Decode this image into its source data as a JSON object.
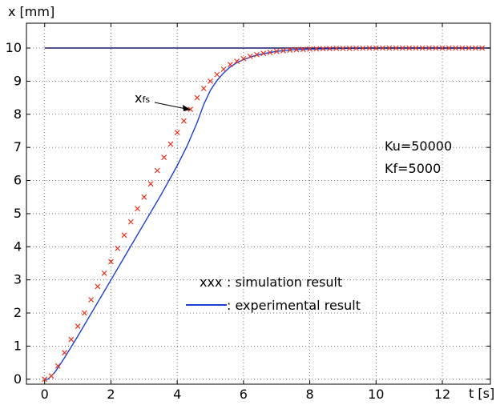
{
  "chart_data": {
    "type": "line",
    "xlabel": "t [s]",
    "ylabel": "x [mm]",
    "xlim": [
      -0.55,
      13.45
    ],
    "ylim": [
      -0.15,
      10.75
    ],
    "xticks": [
      0,
      2,
      4,
      6,
      8,
      10,
      12
    ],
    "yticks": [
      0,
      1,
      2,
      3,
      4,
      5,
      6,
      7,
      8,
      9,
      10
    ],
    "grid": true,
    "series": [
      {
        "name": ": simulation result",
        "marker": "x",
        "color": "#e8321e",
        "x": [
          0,
          0.2,
          0.4,
          0.6,
          0.8,
          1.0,
          1.2,
          1.4,
          1.6,
          1.8,
          2.0,
          2.2,
          2.4,
          2.6,
          2.8,
          3.0,
          3.2,
          3.4,
          3.6,
          3.8,
          4.0,
          4.2,
          4.4,
          4.6,
          4.8,
          5.0,
          5.2,
          5.4,
          5.6,
          5.8,
          6.0,
          6.2,
          6.4,
          6.6,
          6.8,
          7.0,
          7.2,
          7.4,
          7.6,
          7.8,
          8.0,
          8.2,
          8.4,
          8.6,
          8.8,
          9.0,
          9.2,
          9.4,
          9.6,
          9.8,
          10.0,
          10.2,
          10.4,
          10.6,
          10.8,
          11.0,
          11.2,
          11.4,
          11.6,
          11.8,
          12.0,
          12.2,
          12.4,
          12.6,
          12.8,
          13.0,
          13.2
        ],
        "y": [
          0.0,
          0.1,
          0.4,
          0.8,
          1.2,
          1.6,
          2.0,
          2.4,
          2.8,
          3.2,
          3.55,
          3.95,
          4.35,
          4.75,
          5.15,
          5.5,
          5.9,
          6.3,
          6.7,
          7.1,
          7.45,
          7.8,
          8.15,
          8.5,
          8.78,
          9.0,
          9.2,
          9.36,
          9.5,
          9.6,
          9.68,
          9.75,
          9.8,
          9.84,
          9.87,
          9.9,
          9.92,
          9.94,
          9.95,
          9.96,
          9.97,
          9.975,
          9.98,
          9.985,
          9.99,
          9.99,
          9.99,
          9.995,
          9.995,
          10.0,
          10.0,
          10.0,
          10.0,
          10.0,
          10.0,
          10.0,
          10.0,
          10.0,
          10.0,
          10.0,
          10.0,
          10.0,
          10.0,
          10.0,
          10.0,
          10.0,
          10.0
        ]
      },
      {
        "name": ": experimental result",
        "marker": "line",
        "color": "#1a3fd0",
        "x": [
          0,
          0.1,
          0.3,
          0.6,
          1.0,
          1.5,
          2.0,
          2.5,
          3.0,
          3.5,
          4.0,
          4.3,
          4.6,
          4.8,
          5.0,
          5.2,
          5.4,
          5.6,
          5.8,
          6.0,
          6.3,
          6.6,
          7.0,
          7.5,
          8.0,
          8.5,
          9.0,
          10.0,
          11.0,
          12.0,
          13.2
        ],
        "y": [
          0.0,
          0.0,
          0.2,
          0.65,
          1.3,
          2.15,
          3.0,
          3.85,
          4.7,
          5.55,
          6.45,
          7.05,
          7.75,
          8.3,
          8.72,
          9.02,
          9.25,
          9.43,
          9.56,
          9.65,
          9.76,
          9.83,
          9.9,
          9.95,
          9.97,
          9.98,
          9.99,
          10.0,
          10.0,
          10.0,
          10.0
        ]
      },
      {
        "name": "",
        "marker": "line",
        "color": "#1a1a6e",
        "x": [
          0,
          13.45
        ],
        "y": [
          10.0,
          10.0
        ]
      }
    ],
    "annotations": [
      {
        "text": "x",
        "subscript": "fs",
        "target_x": 4.45,
        "target_y": 8.05
      },
      {
        "text": "Ku=50000"
      },
      {
        "text": "Kf=5000"
      }
    ]
  }
}
